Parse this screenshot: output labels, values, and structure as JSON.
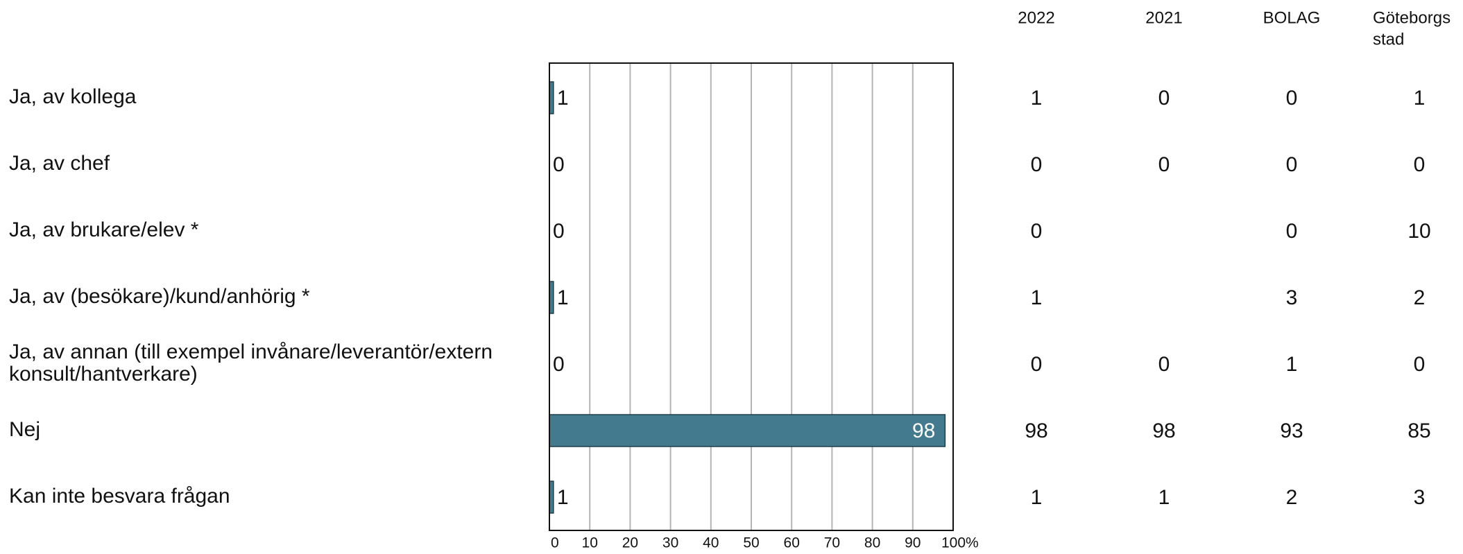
{
  "chart_data": {
    "type": "bar",
    "orientation": "horizontal",
    "title": "",
    "xlabel": "",
    "ylabel": "",
    "xlim": [
      0,
      100
    ],
    "x_ticks": [
      "0",
      "10",
      "20",
      "30",
      "40",
      "50",
      "60",
      "70",
      "80",
      "90",
      "100%"
    ],
    "grid": true,
    "bar_color": "#437a8e",
    "categories": [
      [
        "Ja, av kollega"
      ],
      [
        "Ja, av chef"
      ],
      [
        "Ja, av brukare/elev *"
      ],
      [
        "Ja, av (besökare)/kund/anhörig *"
      ],
      [
        "Ja, av annan (till exempel invånare/leverantör/extern",
        "konsult/hantverkare)"
      ],
      [
        "Nej"
      ],
      [
        "Kan inte besvara frågan"
      ]
    ],
    "values": [
      1,
      0,
      0,
      1,
      0,
      98,
      1
    ],
    "bar_labels": [
      "1",
      "0",
      "0",
      "1",
      "0",
      "98",
      "1"
    ],
    "table": {
      "columns": [
        [
          "2022"
        ],
        [
          "2021"
        ],
        [
          "BOLAG"
        ],
        [
          "Göteborgs",
          "stad"
        ]
      ],
      "rows": [
        [
          "1",
          "0",
          "0",
          "1"
        ],
        [
          "0",
          "0",
          "0",
          "0"
        ],
        [
          "0",
          "",
          "0",
          "10"
        ],
        [
          "1",
          "",
          "3",
          "2"
        ],
        [
          "0",
          "0",
          "1",
          "0"
        ],
        [
          "98",
          "98",
          "93",
          "85"
        ],
        [
          "1",
          "1",
          "2",
          "3"
        ]
      ]
    }
  }
}
